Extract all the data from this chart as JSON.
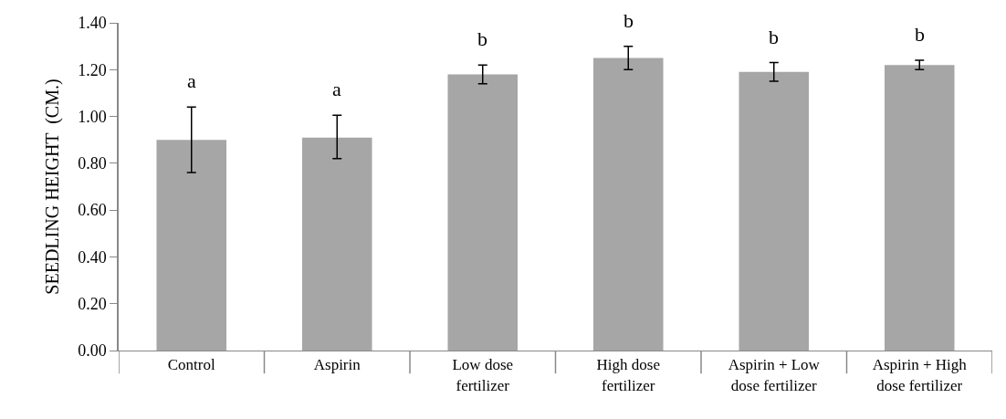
{
  "chart_data": {
    "type": "bar",
    "ylabel": "SEEDLING HEIGHT  (CM.)",
    "categories": [
      "Control",
      "Aspirin",
      "Low dose\nfertilizer",
      "High dose\nfertilizer",
      "Aspirin + Low\ndose fertilizer",
      "Aspirin + High\ndose fertilizer"
    ],
    "values": [
      0.9,
      0.91,
      1.18,
      1.25,
      1.19,
      1.22
    ],
    "color": "#a6a6a6",
    "errors": [
      [
        0.76,
        1.04
      ],
      [
        0.82,
        1.005
      ],
      [
        1.14,
        1.22
      ],
      [
        1.2,
        1.3
      ],
      [
        1.15,
        1.23
      ],
      [
        1.2,
        1.24
      ]
    ],
    "ylim": [
      0,
      1.4
    ],
    "yticks": [
      {
        "value": 0,
        "label": "0.00"
      },
      {
        "value": 0.2,
        "label": "0.20"
      },
      {
        "value": 0.4,
        "label": "0.40"
      },
      {
        "value": 0.6,
        "label": "0.60"
      },
      {
        "value": 0.8,
        "label": "0.80"
      },
      {
        "value": 1.0,
        "label": "1.00"
      },
      {
        "value": 1.2,
        "label": "1.20"
      },
      {
        "value": 1.4,
        "label": "1.40"
      }
    ],
    "annotations": [
      "a",
      "a",
      "b",
      "b",
      "b",
      "b"
    ]
  }
}
